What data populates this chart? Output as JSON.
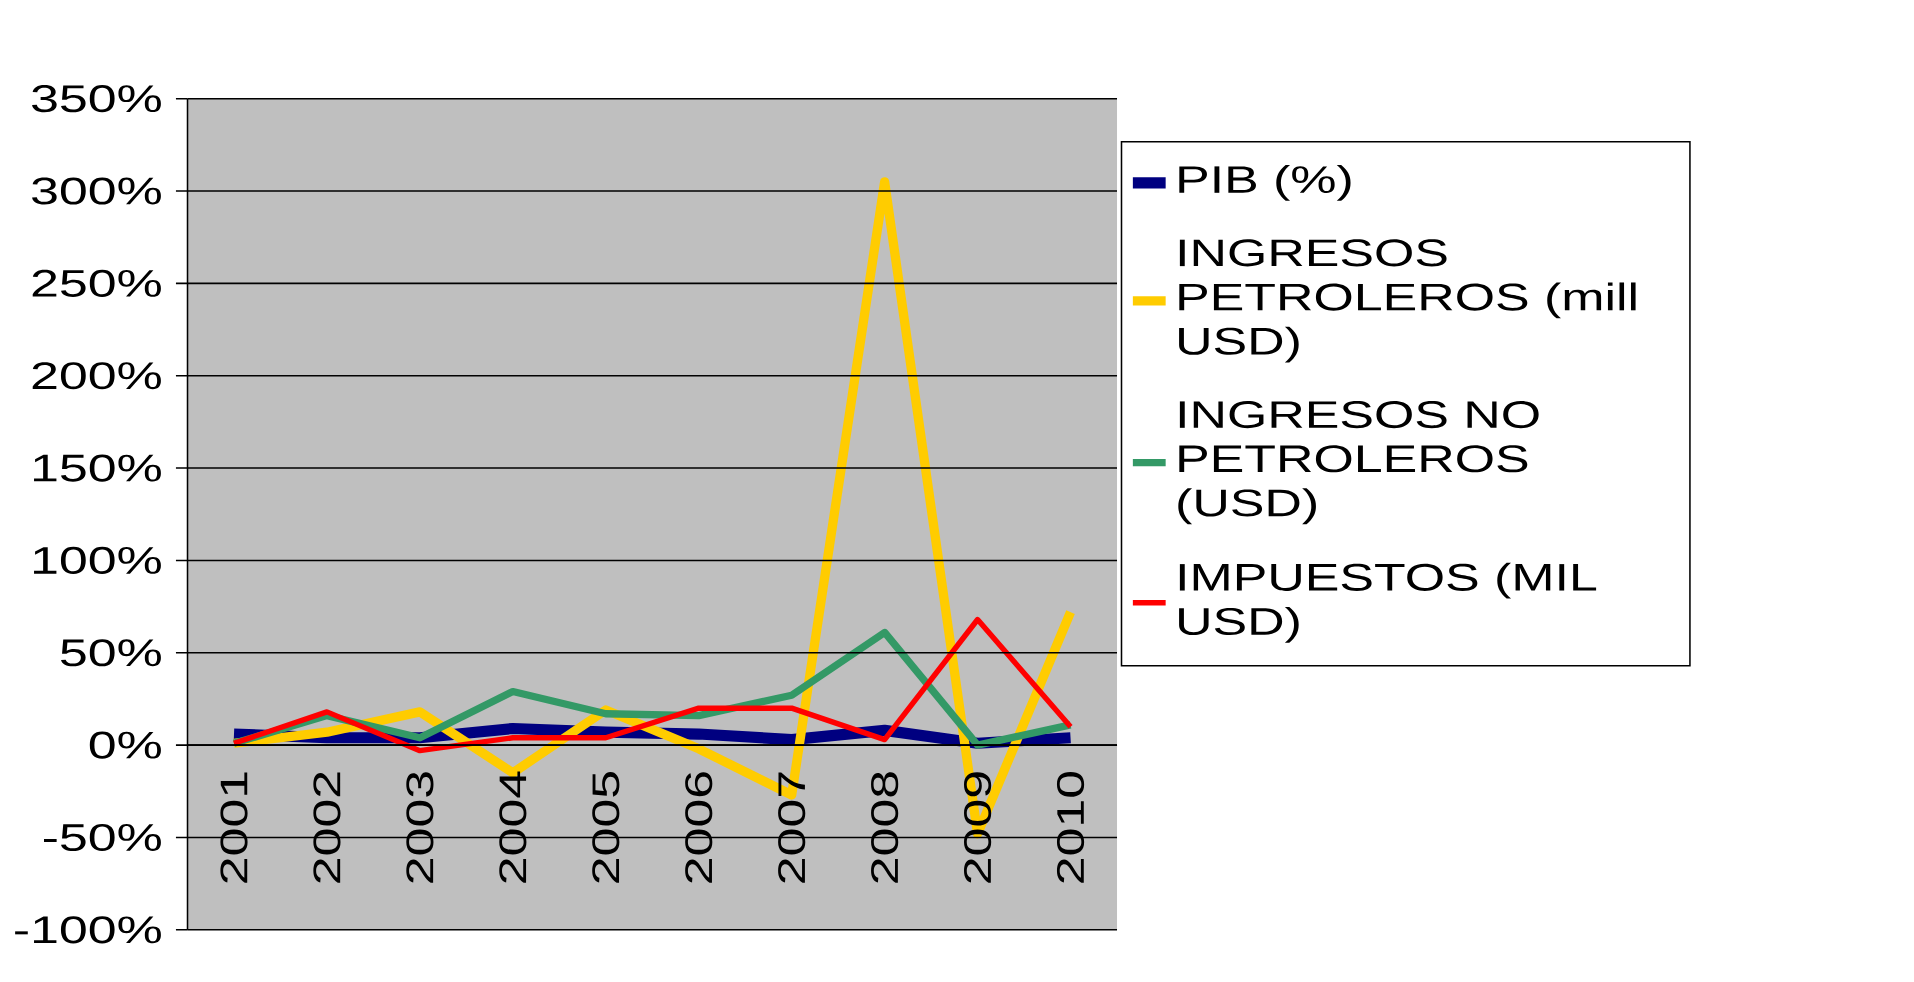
{
  "chart_data": {
    "type": "line",
    "categories": [
      "2001",
      "2002",
      "2003",
      "2004",
      "2005",
      "2006",
      "2007",
      "2008",
      "2009",
      "2010"
    ],
    "series": [
      {
        "name": "PIB (%)",
        "color": "#000080",
        "values": [
          6,
          4,
          4,
          9,
          7,
          6,
          3,
          8,
          1,
          4
        ]
      },
      {
        "name": "INGRESOS PETROLEROS (mill USD)",
        "color": "#ffcc00",
        "values": [
          1,
          7,
          18,
          -15,
          19,
          -2,
          -27,
          305,
          -48,
          72
        ]
      },
      {
        "name": "INGRESOS NO PETROLEROS (USD)",
        "color": "#339966",
        "values": [
          1,
          16,
          4,
          29,
          17,
          16,
          27,
          61,
          0,
          11
        ]
      },
      {
        "name": "IMPUESTOS (MIL USD)",
        "color": "#ff0000",
        "values": [
          1,
          18,
          -3,
          4,
          4,
          20,
          20,
          3,
          68,
          10
        ]
      }
    ],
    "ylim": [
      -100,
      350
    ],
    "yticks": [
      {
        "value": -100,
        "label": "-100%"
      },
      {
        "value": -50,
        "label": "-50%"
      },
      {
        "value": 0,
        "label": "0%"
      },
      {
        "value": 50,
        "label": "50%"
      },
      {
        "value": 100,
        "label": "100%"
      },
      {
        "value": 150,
        "label": "150%"
      },
      {
        "value": 200,
        "label": "200%"
      },
      {
        "value": 250,
        "label": "250%"
      },
      {
        "value": 300,
        "label": "300%"
      },
      {
        "value": 350,
        "label": "350%"
      }
    ],
    "grid": "y",
    "legend": "right",
    "marker": "none",
    "line_style": "solid"
  }
}
